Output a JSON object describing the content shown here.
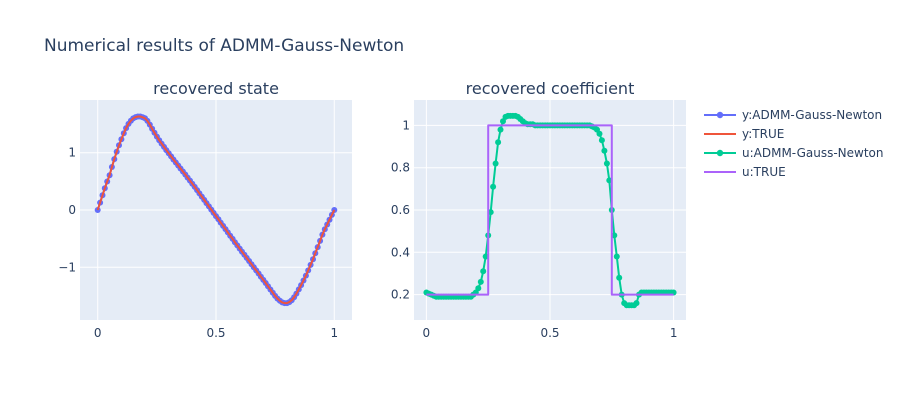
{
  "figure": {
    "title": "Numerical results of ADMM-Gauss-Newton"
  },
  "colors": {
    "y_admm": "#636efa",
    "y_true": "#ef553b",
    "u_admm": "#00cc96",
    "u_true": "#ab63fa",
    "plot_bg": "#e5ecf6",
    "grid": "#ffffff",
    "text": "#2a3f5f"
  },
  "legend": {
    "placement": "right",
    "items": [
      {
        "label": "y:ADMM-Gauss-Newton",
        "color": "#636efa",
        "markers": true
      },
      {
        "label": "y:TRUE",
        "color": "#ef553b",
        "markers": false
      },
      {
        "label": "u:ADMM-Gauss-Newton",
        "color": "#00cc96",
        "markers": true
      },
      {
        "label": "u:TRUE",
        "color": "#ab63fa",
        "markers": false
      }
    ]
  },
  "chart_data": [
    {
      "type": "line",
      "title": "recovered state",
      "xlabel": "",
      "ylabel": "",
      "xlim": [
        -0.075,
        1.075
      ],
      "ylim": [
        -1.92,
        1.92
      ],
      "xticks": [
        0,
        0.5,
        1
      ],
      "xtick_labels": [
        "0",
        "0.5",
        "1"
      ],
      "yticks": [
        -1,
        0,
        1
      ],
      "ytick_labels": [
        "−1",
        "0",
        "1"
      ],
      "grid": true,
      "series": [
        {
          "name": "y:ADMM-Gauss-Newton",
          "color": "#636efa",
          "markers": true,
          "x": [
            0,
            0.01,
            0.02,
            0.03,
            0.04,
            0.05,
            0.06,
            0.07,
            0.08,
            0.09,
            0.1,
            0.11,
            0.12,
            0.13,
            0.14,
            0.15,
            0.16,
            0.17,
            0.18,
            0.19,
            0.2,
            0.21,
            0.22,
            0.23,
            0.24,
            0.25,
            0.26,
            0.27,
            0.28,
            0.29,
            0.3,
            0.31,
            0.32,
            0.33,
            0.34,
            0.35,
            0.36,
            0.37,
            0.38,
            0.39,
            0.4,
            0.41,
            0.42,
            0.43,
            0.44,
            0.45,
            0.46,
            0.47,
            0.48,
            0.49,
            0.5,
            0.51,
            0.52,
            0.53,
            0.54,
            0.55,
            0.56,
            0.57,
            0.58,
            0.59,
            0.6,
            0.61,
            0.62,
            0.63,
            0.64,
            0.65,
            0.66,
            0.67,
            0.68,
            0.69,
            0.7,
            0.71,
            0.72,
            0.73,
            0.74,
            0.75,
            0.76,
            0.77,
            0.78,
            0.79,
            0.8,
            0.81,
            0.82,
            0.83,
            0.84,
            0.85,
            0.86,
            0.87,
            0.88,
            0.89,
            0.9,
            0.91,
            0.92,
            0.93,
            0.94,
            0.95,
            0.96,
            0.97,
            0.98,
            0.99,
            1
          ],
          "y": [
            0,
            0.129,
            0.256,
            0.379,
            0.497,
            0.608,
            0.75,
            0.889,
            1.016,
            1.13,
            1.236,
            1.338,
            1.429,
            1.503,
            1.559,
            1.598,
            1.621,
            1.632,
            1.632,
            1.618,
            1.6,
            1.555,
            1.49,
            1.419,
            1.348,
            1.281,
            1.219,
            1.159,
            1.101,
            1.045,
            0.99,
            0.936,
            0.882,
            0.829,
            0.777,
            0.724,
            0.672,
            0.619,
            0.566,
            0.513,
            0.459,
            0.404,
            0.347,
            0.29,
            0.234,
            0.177,
            0.12,
            0.063,
            0.007,
            -0.05,
            -0.106,
            -0.163,
            -0.22,
            -0.277,
            -0.334,
            -0.391,
            -0.448,
            -0.505,
            -0.562,
            -0.618,
            -0.673,
            -0.728,
            -0.782,
            -0.836,
            -0.89,
            -0.946,
            -1.001,
            -1.055,
            -1.109,
            -1.165,
            -1.22,
            -1.275,
            -1.331,
            -1.387,
            -1.444,
            -1.5,
            -1.546,
            -1.585,
            -1.612,
            -1.625,
            -1.625,
            -1.608,
            -1.574,
            -1.524,
            -1.459,
            -1.386,
            -1.31,
            -1.23,
            -1.145,
            -1.054,
            -0.958,
            -0.858,
            -0.754,
            -0.648,
            -0.54,
            -0.43,
            -0.337,
            -0.253,
            -0.17,
            -0.085,
            0
          ]
        },
        {
          "name": "y:TRUE",
          "color": "#ef553b",
          "markers": false,
          "x": [
            0,
            0.01,
            0.02,
            0.03,
            0.04,
            0.05,
            0.06,
            0.07,
            0.08,
            0.09,
            0.1,
            0.11,
            0.12,
            0.13,
            0.14,
            0.15,
            0.16,
            0.17,
            0.18,
            0.19,
            0.2,
            0.21,
            0.22,
            0.23,
            0.24,
            0.25,
            0.26,
            0.27,
            0.28,
            0.29,
            0.3,
            0.31,
            0.32,
            0.33,
            0.34,
            0.35,
            0.36,
            0.37,
            0.38,
            0.39,
            0.4,
            0.41,
            0.42,
            0.43,
            0.44,
            0.45,
            0.46,
            0.47,
            0.48,
            0.49,
            0.5,
            0.51,
            0.52,
            0.53,
            0.54,
            0.55,
            0.56,
            0.57,
            0.58,
            0.59,
            0.6,
            0.61,
            0.62,
            0.63,
            0.64,
            0.65,
            0.66,
            0.67,
            0.68,
            0.69,
            0.7,
            0.71,
            0.72,
            0.73,
            0.74,
            0.75,
            0.76,
            0.77,
            0.78,
            0.79,
            0.8,
            0.81,
            0.82,
            0.83,
            0.84,
            0.85,
            0.86,
            0.87,
            0.88,
            0.89,
            0.9,
            0.91,
            0.92,
            0.93,
            0.94,
            0.95,
            0.96,
            0.97,
            0.98,
            0.99,
            1
          ],
          "y": [
            0,
            0.129,
            0.256,
            0.379,
            0.497,
            0.608,
            0.75,
            0.889,
            1.016,
            1.13,
            1.236,
            1.338,
            1.429,
            1.503,
            1.559,
            1.598,
            1.621,
            1.632,
            1.632,
            1.618,
            1.6,
            1.555,
            1.49,
            1.419,
            1.348,
            1.281,
            1.219,
            1.159,
            1.101,
            1.045,
            0.99,
            0.936,
            0.882,
            0.829,
            0.777,
            0.724,
            0.672,
            0.619,
            0.566,
            0.513,
            0.459,
            0.404,
            0.347,
            0.29,
            0.234,
            0.177,
            0.12,
            0.063,
            0.007,
            -0.05,
            -0.106,
            -0.163,
            -0.22,
            -0.277,
            -0.334,
            -0.391,
            -0.448,
            -0.505,
            -0.562,
            -0.618,
            -0.673,
            -0.728,
            -0.782,
            -0.836,
            -0.89,
            -0.946,
            -1.001,
            -1.055,
            -1.109,
            -1.165,
            -1.22,
            -1.275,
            -1.331,
            -1.387,
            -1.444,
            -1.5,
            -1.546,
            -1.585,
            -1.612,
            -1.625,
            -1.625,
            -1.608,
            -1.574,
            -1.524,
            -1.459,
            -1.386,
            -1.31,
            -1.23,
            -1.145,
            -1.054,
            -0.958,
            -0.858,
            -0.754,
            -0.648,
            -0.54,
            -0.43,
            -0.337,
            -0.253,
            -0.17,
            -0.085,
            0
          ]
        }
      ]
    },
    {
      "type": "line",
      "title": "recovered coefficient",
      "xlabel": "",
      "ylabel": "",
      "xlim": [
        -0.05,
        1.05
      ],
      "ylim": [
        0.08,
        1.12
      ],
      "xticks": [
        0,
        0.5,
        1
      ],
      "xtick_labels": [
        "0",
        "0.5",
        "1"
      ],
      "yticks": [
        0.2,
        0.4,
        0.6,
        0.8,
        1
      ],
      "ytick_labels": [
        "0.2",
        "0.4",
        "0.6",
        "0.8",
        "1"
      ],
      "grid": true,
      "series": [
        {
          "name": "u:ADMM-Gauss-Newton",
          "color": "#00cc96",
          "markers": true,
          "x": [
            0,
            0.01,
            0.02,
            0.03,
            0.04,
            0.05,
            0.06,
            0.07,
            0.08,
            0.09,
            0.1,
            0.11,
            0.12,
            0.13,
            0.14,
            0.15,
            0.16,
            0.17,
            0.18,
            0.19,
            0.2,
            0.21,
            0.22,
            0.23,
            0.24,
            0.25,
            0.26,
            0.27,
            0.28,
            0.29,
            0.3,
            0.31,
            0.32,
            0.33,
            0.34,
            0.35,
            0.36,
            0.37,
            0.38,
            0.39,
            0.4,
            0.41,
            0.42,
            0.43,
            0.44,
            0.45,
            0.46,
            0.47,
            0.48,
            0.49,
            0.5,
            0.51,
            0.52,
            0.53,
            0.54,
            0.55,
            0.56,
            0.57,
            0.58,
            0.59,
            0.6,
            0.61,
            0.62,
            0.63,
            0.64,
            0.65,
            0.66,
            0.67,
            0.68,
            0.69,
            0.7,
            0.71,
            0.72,
            0.73,
            0.74,
            0.75,
            0.76,
            0.77,
            0.78,
            0.79,
            0.8,
            0.81,
            0.82,
            0.83,
            0.84,
            0.85,
            0.86,
            0.87,
            0.88,
            0.89,
            0.9,
            0.91,
            0.92,
            0.93,
            0.94,
            0.95,
            0.96,
            0.97,
            0.98,
            0.99,
            1
          ],
          "y": [
            0.21,
            0.205,
            0.2,
            0.195,
            0.19,
            0.19,
            0.19,
            0.19,
            0.19,
            0.19,
            0.19,
            0.19,
            0.19,
            0.19,
            0.19,
            0.19,
            0.19,
            0.19,
            0.19,
            0.2,
            0.21,
            0.23,
            0.26,
            0.31,
            0.38,
            0.48,
            0.59,
            0.71,
            0.82,
            0.92,
            0.98,
            1.02,
            1.04,
            1.045,
            1.045,
            1.045,
            1.045,
            1.04,
            1.03,
            1.02,
            1.01,
            1.005,
            1.005,
            1.005,
            1.0,
            1.0,
            1.0,
            1.0,
            1.0,
            1.0,
            1.0,
            1.0,
            1.0,
            1.0,
            1.0,
            1.0,
            1.0,
            1.0,
            1.0,
            1.0,
            1.0,
            1.0,
            1.0,
            1.0,
            1.0,
            1.0,
            1.0,
            0.995,
            0.99,
            0.98,
            0.96,
            0.93,
            0.88,
            0.82,
            0.74,
            0.6,
            0.48,
            0.38,
            0.28,
            0.2,
            0.16,
            0.15,
            0.15,
            0.15,
            0.15,
            0.16,
            0.2,
            0.21,
            0.21,
            0.21,
            0.21,
            0.21,
            0.21,
            0.21,
            0.21,
            0.21,
            0.21,
            0.21,
            0.21,
            0.21,
            0.21
          ]
        },
        {
          "name": "u:TRUE",
          "color": "#ab63fa",
          "markers": false,
          "x": [
            0,
            0.25,
            0.25,
            0.75,
            0.75,
            1
          ],
          "y": [
            0.2,
            0.2,
            1,
            1,
            0.2,
            0.2
          ]
        }
      ]
    }
  ]
}
